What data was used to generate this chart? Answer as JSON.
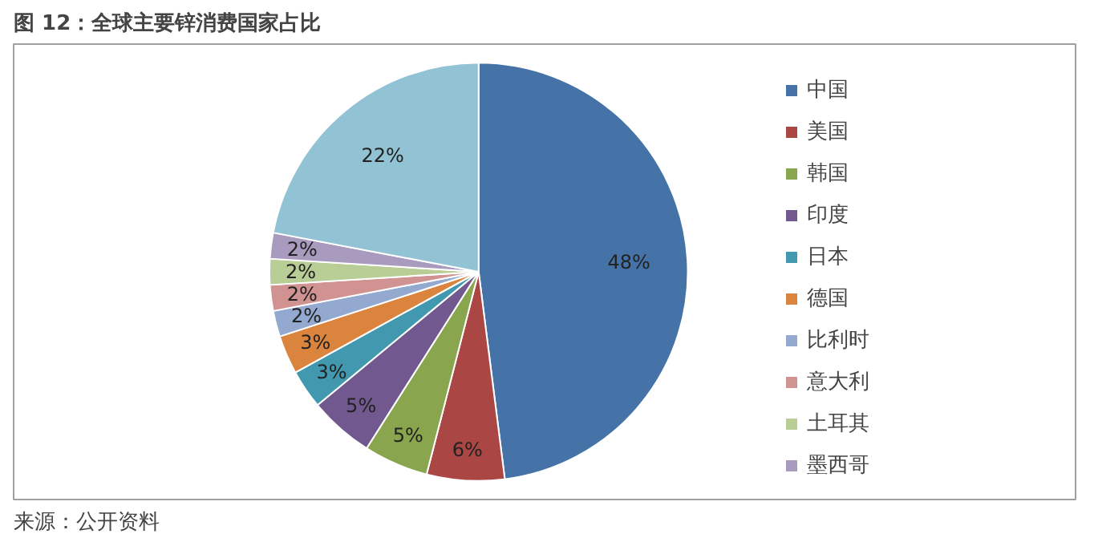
{
  "chart_data": {
    "type": "pie",
    "title": "图 12：全球主要锌消费国家占比",
    "categories": [
      "中国",
      "美国",
      "韩国",
      "印度",
      "日本",
      "德国",
      "比利时",
      "意大利",
      "土耳其",
      "墨西哥",
      null
    ],
    "values": [
      48,
      6,
      5,
      5,
      3,
      3,
      2,
      2,
      2,
      2,
      22
    ],
    "value_labels": [
      "48%",
      "6%",
      "5%",
      "5%",
      "3%",
      "3%",
      "2%",
      "2%",
      "2%",
      "2%",
      "22%"
    ],
    "colors": [
      "#4572a7",
      "#aa4643",
      "#89a54e",
      "#71588f",
      "#4198af",
      "#db843d",
      "#93a9cf",
      "#d19392",
      "#b9cd96",
      "#a99bbd",
      "#92c3d5"
    ],
    "legend": "right",
    "annotations": [
      "来源：公开资料"
    ]
  }
}
